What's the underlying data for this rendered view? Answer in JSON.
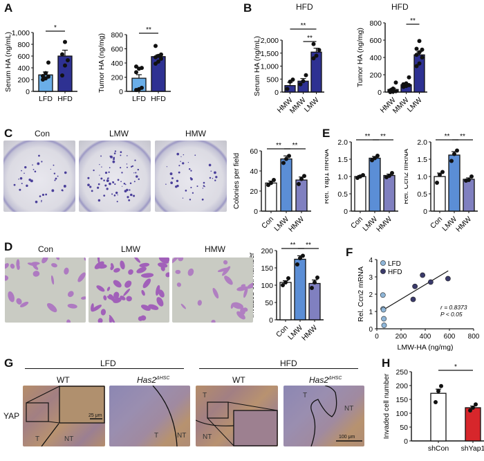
{
  "panels": {
    "A": {
      "letter": "A"
    },
    "B": {
      "letter": "B",
      "titles": [
        "HFD",
        "HFD"
      ]
    },
    "C": {
      "letter": "C",
      "image_labels": [
        "Con",
        "LMW",
        "HMW"
      ]
    },
    "D": {
      "letter": "D",
      "image_labels": [
        "Con",
        "LMW",
        "HMW"
      ]
    },
    "E": {
      "letter": "E"
    },
    "F": {
      "letter": "F"
    },
    "G": {
      "letter": "G",
      "groups": [
        "LFD",
        "HFD"
      ],
      "columns": [
        "WT",
        "Has2",
        "WT",
        "Has2"
      ],
      "superscript": "ΔHSC",
      "row_label": "YAP",
      "region_labels": {
        "T": "T",
        "NT": "NT"
      },
      "scale_bars": [
        "25 μm",
        "100 μm"
      ]
    },
    "H": {
      "letter": "H"
    }
  },
  "colors": {
    "lfd_bar": "#6aaee8",
    "hfd_bar": "#2e3192",
    "con_bar": "#ffffff",
    "lmw_bar": "#5b8ed6",
    "hmw_bar": "#8080c0",
    "shyap_bar": "#d7262b",
    "lfd_point": "#8fb6d8",
    "hfd_point": "#3a3a6a"
  },
  "chart_data": [
    {
      "id": "A-left",
      "type": "bar",
      "title": "",
      "categories": [
        "LFD",
        "HFD"
      ],
      "values": [
        280,
        600
      ],
      "sem": [
        50,
        100
      ],
      "points": [
        [
          200,
          220,
          250,
          260,
          310,
          490
        ],
        [
          270,
          440,
          530,
          630,
          840
        ]
      ],
      "ylabel": "Serum HA (ng/mL)",
      "ylim": [
        0,
        1000
      ],
      "yticks": [
        "0",
        "200",
        "400",
        "600",
        "800",
        "1,000"
      ],
      "significance": [
        {
          "pair": [
            "LFD",
            "HFD"
          ],
          "label": "*"
        }
      ]
    },
    {
      "id": "A-right",
      "type": "bar",
      "title": "",
      "categories": [
        "LFD",
        "HFD"
      ],
      "values": [
        185,
        490
      ],
      "sem": [
        50,
        25
      ],
      "points": [
        [
          20,
          30,
          50,
          270,
          320,
          330,
          350
        ],
        [
          390,
          420,
          460,
          480,
          500,
          520,
          640
        ]
      ],
      "ylabel": "Tumor HA (ng/mg)",
      "ylim": [
        0,
        800
      ],
      "yticks": [
        "0",
        "200",
        "400",
        "600",
        "800"
      ],
      "significance": [
        {
          "pair": [
            "LFD",
            "HFD"
          ],
          "label": "**"
        }
      ]
    },
    {
      "id": "B-left",
      "type": "bar",
      "title": "HFD",
      "categories": [
        "HMW",
        "MMW",
        "LMW"
      ],
      "values": [
        250,
        420,
        1540
      ],
      "sem": [
        120,
        100,
        150
      ],
      "points": [
        [
          120,
          400,
          480
        ],
        [
          300,
          420,
          650
        ],
        [
          1300,
          1400,
          1620,
          1850
        ]
      ],
      "ylabel": "Serum HA (ng/mL)",
      "ylim": [
        0,
        2000
      ],
      "yticks": [
        "0",
        "500",
        "1,000",
        "1,500",
        "2,000"
      ],
      "significance": [
        {
          "pair": [
            "HMW",
            "LMW"
          ],
          "label": "**"
        },
        {
          "pair": [
            "MMW",
            "LMW"
          ],
          "label": "**"
        }
      ]
    },
    {
      "id": "B-right",
      "type": "bar",
      "title": "HFD",
      "categories": [
        "HMW",
        "MMW",
        "LMW"
      ],
      "values": [
        30,
        85,
        430
      ],
      "sem": [
        15,
        12,
        35
      ],
      "points": [
        [
          0,
          5,
          10,
          20,
          40,
          110
        ],
        [
          60,
          70,
          80,
          90,
          100,
          170
        ],
        [
          300,
          330,
          400,
          430,
          460,
          490,
          500,
          590
        ]
      ],
      "ylabel": "Tumor HA (ng/mg)",
      "ylim": [
        0,
        800
      ],
      "yticks": [
        "0",
        "200",
        "400",
        "600",
        "800"
      ],
      "significance": [
        {
          "pair": [
            "HMW",
            "LMW"
          ],
          "label": "**"
        },
        {
          "pair": [
            "MMW",
            "LMW"
          ],
          "label": "**"
        }
      ]
    },
    {
      "id": "C",
      "type": "bar",
      "title": "",
      "categories": [
        "Con",
        "LMW",
        "HMW"
      ],
      "values": [
        28,
        52,
        31
      ],
      "sem": [
        2,
        3,
        3
      ],
      "points": [
        [
          26,
          28,
          31
        ],
        [
          48,
          52,
          55
        ],
        [
          27,
          32,
          35
        ]
      ],
      "ylabel": "Colonies per field",
      "ylim": [
        0,
        60
      ],
      "yticks": [
        "0",
        "20",
        "40",
        "60"
      ],
      "significance": [
        {
          "pair": [
            "Con",
            "LMW"
          ],
          "label": "**"
        },
        {
          "pair": [
            "LMW",
            "HMW"
          ],
          "label": "**"
        }
      ]
    },
    {
      "id": "E-left",
      "type": "bar",
      "title": "",
      "categories": [
        "Con",
        "LMW",
        "HMW"
      ],
      "values": [
        1.0,
        1.53,
        1.03
      ],
      "sem": [
        0.03,
        0.05,
        0.04
      ],
      "points": [
        [
          0.96,
          1.0,
          1.04
        ],
        [
          1.47,
          1.53,
          1.6
        ],
        [
          0.98,
          1.02,
          1.1
        ]
      ],
      "ylabel": "Rel. Yap1 mRNA",
      "ylim": [
        0,
        2.0
      ],
      "yticks": [
        "0",
        "0.5",
        "1.0",
        "1.5",
        "2.0"
      ],
      "significance": [
        {
          "pair": [
            "Con",
            "LMW"
          ],
          "label": "**"
        },
        {
          "pair": [
            "LMW",
            "HMW"
          ],
          "label": "**"
        }
      ]
    },
    {
      "id": "E-right",
      "type": "bar",
      "title": "",
      "categories": [
        "Con",
        "LMW",
        "HMW"
      ],
      "values": [
        1.0,
        1.62,
        0.92
      ],
      "sem": [
        0.1,
        0.1,
        0.04
      ],
      "points": [
        [
          0.82,
          1.05,
          1.13
        ],
        [
          1.45,
          1.65,
          1.75
        ],
        [
          0.88,
          0.9,
          1.0
        ]
      ],
      "ylabel": "Rel. Ccn2 mRNA",
      "ylim": [
        0,
        2.0
      ],
      "yticks": [
        "0",
        "0.5",
        "1.0",
        "1.5",
        "2.0"
      ],
      "significance": [
        {
          "pair": [
            "Con",
            "LMW"
          ],
          "label": "**"
        },
        {
          "pair": [
            "LMW",
            "HMW"
          ],
          "label": "**"
        }
      ]
    },
    {
      "id": "D",
      "type": "bar",
      "title": "",
      "categories": [
        "Con",
        "LMW",
        "HMW"
      ],
      "values": [
        108,
        175,
        105
      ],
      "sem": [
        5,
        10,
        10
      ],
      "points": [
        [
          100,
          108,
          120
        ],
        [
          160,
          178,
          185
        ],
        [
          92,
          108,
          122
        ]
      ],
      "ylabel": "Invaded cell number",
      "ylim": [
        0,
        200
      ],
      "yticks": [
        "0",
        "50",
        "100",
        "150",
        "200"
      ],
      "significance": [
        {
          "pair": [
            "Con",
            "LMW"
          ],
          "label": "**"
        },
        {
          "pair": [
            "LMW",
            "HMW"
          ],
          "label": "**"
        }
      ]
    },
    {
      "id": "F",
      "type": "scatter",
      "title": "",
      "series": [
        {
          "name": "LFD",
          "x": [
            50,
            52,
            55,
            58,
            60
          ],
          "y": [
            1.95,
            1.15,
            1.1,
            0.58,
            0.2
          ]
        },
        {
          "name": "HFD",
          "x": [
            300,
            315,
            378,
            445,
            588
          ],
          "y": [
            1.7,
            2.45,
            3.1,
            2.7,
            2.9
          ]
        }
      ],
      "fit_line": {
        "x": [
          55,
          590
        ],
        "y": [
          1.1,
          3.35
        ]
      },
      "annotations": [
        "r = 0.8373",
        "P < 0.05"
      ],
      "xlabel": "LMW-HA (ng/mg)",
      "ylabel": "Rel. Ccn2 mRNA",
      "xlim": [
        0,
        800
      ],
      "ylim": [
        0,
        4
      ],
      "xticks": [
        "0",
        "200",
        "400",
        "600",
        "800"
      ],
      "yticks": [
        "0",
        "1",
        "2",
        "3",
        "4"
      ],
      "legend_position": "top-left"
    },
    {
      "id": "H",
      "type": "bar",
      "title": "",
      "categories": [
        "shCon",
        "shYap1"
      ],
      "values": [
        172,
        120
      ],
      "sem": [
        15,
        6
      ],
      "points": [
        [
          140,
          180,
          198
        ],
        [
          110,
          120,
          132
        ]
      ],
      "ylabel": "Invaded cell number",
      "ylim": [
        0,
        250
      ],
      "yticks": [
        "0",
        "50",
        "100",
        "150",
        "200",
        "250"
      ],
      "significance": [
        {
          "pair": [
            "shCon",
            "shYap1"
          ],
          "label": "*"
        }
      ]
    }
  ]
}
